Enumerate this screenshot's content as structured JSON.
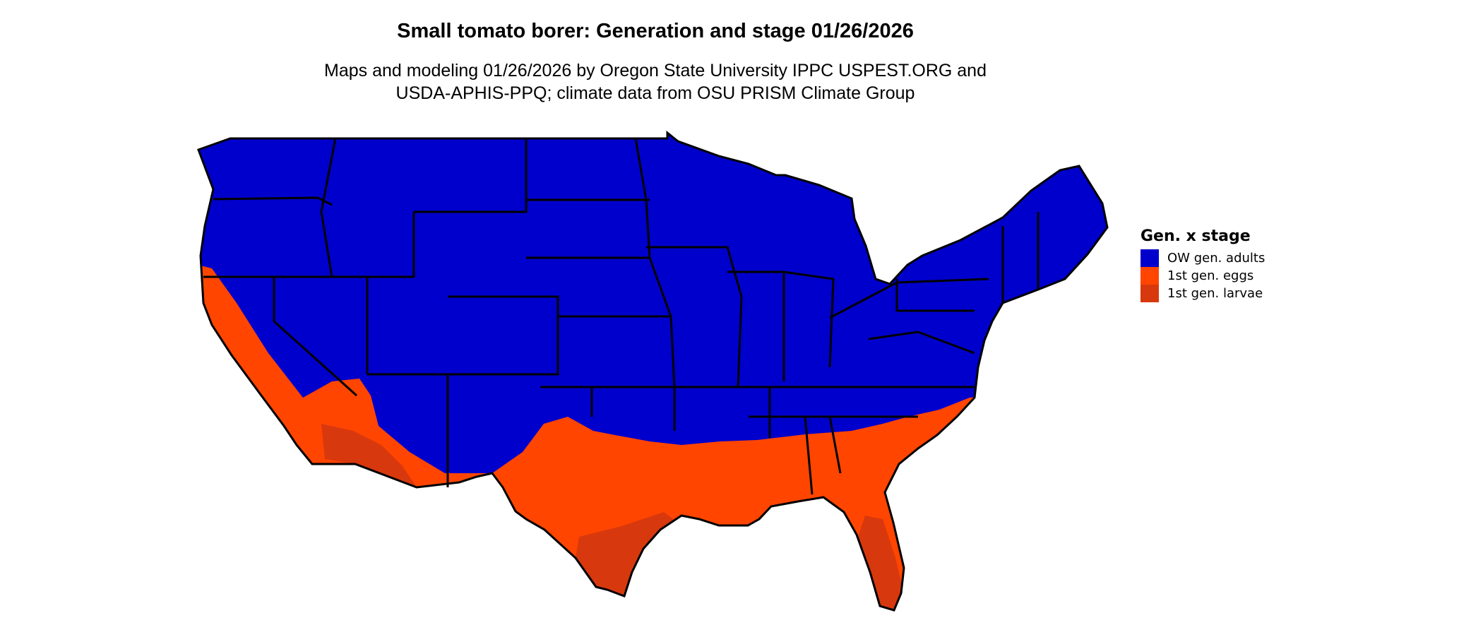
{
  "title": "Small tomato borer: Generation and stage 01/26/2026",
  "subtitle_lines": [
    "Maps and modeling 01/26/2026 by Oregon State University IPPC USPEST.ORG and",
    "USDA-APHIS-PPQ; climate data from OSU PRISM Climate Group"
  ],
  "legend": {
    "title": "Gen. x stage",
    "items": [
      {
        "label": "OW gen. adults",
        "color": "#0000CC"
      },
      {
        "label": "1st gen. eggs",
        "color": "#FF4500"
      },
      {
        "label": "1st gen. larvae",
        "color": "#D8380E"
      }
    ]
  },
  "map": {
    "region": "Contiguous United States",
    "border_color": "#000000"
  }
}
